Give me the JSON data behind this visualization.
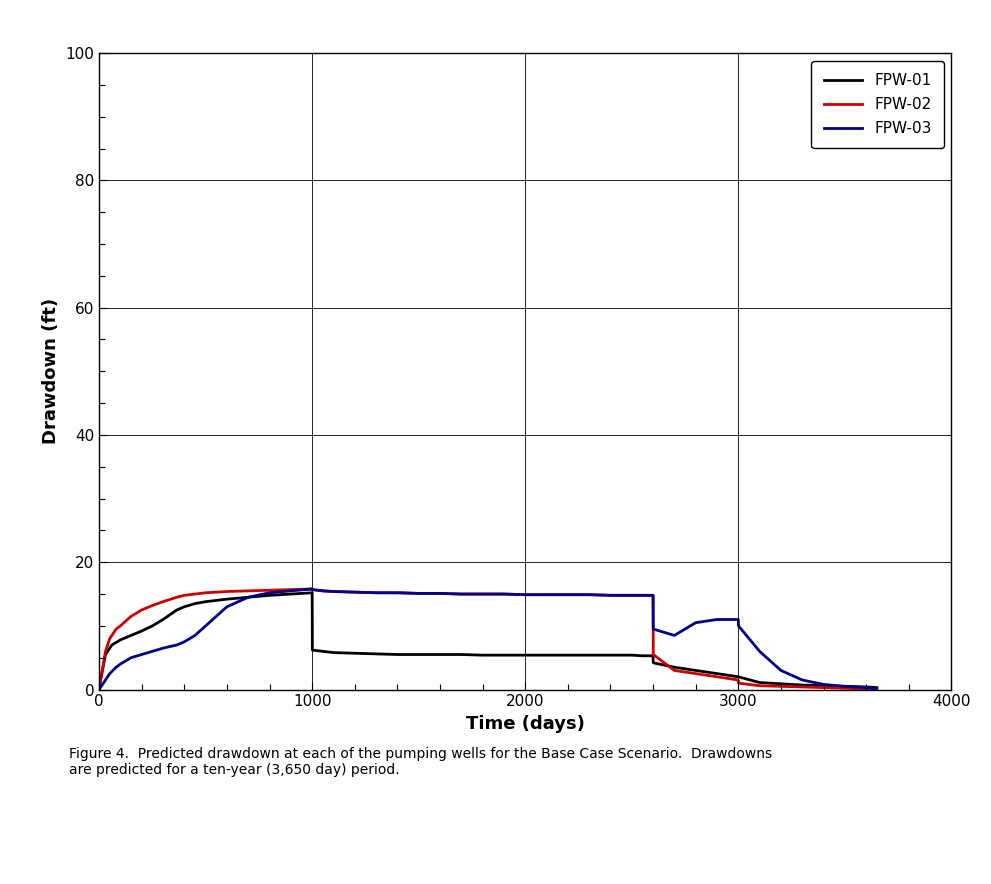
{
  "title": "",
  "xlabel": "Time (days)",
  "ylabel": "Drawdown (ft)",
  "xlim": [
    0,
    4000
  ],
  "ylim": [
    0,
    100
  ],
  "xticks": [
    0,
    1000,
    2000,
    3000,
    4000
  ],
  "yticks": [
    0,
    20,
    40,
    60,
    80,
    100
  ],
  "legend_labels": [
    "FPW-01",
    "FPW-02",
    "FPW-03"
  ],
  "legend_colors": [
    "#000000",
    "#cc0000",
    "#00008b"
  ],
  "caption": "Figure 4.  Predicted drawdown at each of the pumping wells for the Base Case Scenario.  Drawdowns\nare predicted for a ten-year (3,650 day) period.",
  "fpw01": {
    "color": "#000000",
    "x": [
      0,
      1,
      30,
      60,
      100,
      150,
      200,
      250,
      300,
      365,
      400,
      450,
      500,
      600,
      700,
      800,
      900,
      1000,
      1001,
      1050,
      1100,
      1200,
      1300,
      1400,
      1500,
      1600,
      1700,
      1800,
      1900,
      2000,
      2100,
      2200,
      2300,
      2400,
      2500,
      2550,
      2600,
      2601,
      2700,
      2800,
      2900,
      3000,
      3100,
      3200,
      3300,
      3400,
      3500,
      3600,
      3650
    ],
    "y": [
      0,
      0.5,
      5.5,
      7.0,
      7.8,
      8.5,
      9.2,
      10.0,
      11.0,
      12.5,
      13.0,
      13.5,
      13.8,
      14.2,
      14.5,
      14.8,
      15.0,
      15.2,
      6.2,
      6.0,
      5.8,
      5.7,
      5.6,
      5.5,
      5.5,
      5.5,
      5.5,
      5.4,
      5.4,
      5.4,
      5.4,
      5.4,
      5.4,
      5.4,
      5.4,
      5.3,
      5.3,
      4.2,
      3.5,
      3.0,
      2.5,
      2.0,
      1.1,
      0.9,
      0.7,
      0.6,
      0.5,
      0.4,
      0.3
    ]
  },
  "fpw02": {
    "color": "#cc0000",
    "x": [
      0,
      1,
      10,
      30,
      50,
      80,
      100,
      150,
      200,
      250,
      300,
      365,
      400,
      450,
      500,
      600,
      700,
      800,
      900,
      1000,
      1001,
      1050,
      1100,
      1200,
      1300,
      1400,
      1500,
      1600,
      1700,
      1800,
      1900,
      2000,
      2100,
      2200,
      2300,
      2400,
      2500,
      2550,
      2600,
      2601,
      2700,
      2800,
      2900,
      3000,
      3001,
      3100,
      3200,
      3300,
      3400,
      3500,
      3600,
      3650
    ],
    "y": [
      0,
      0.3,
      2.0,
      6.0,
      8.0,
      9.5,
      10.0,
      11.5,
      12.5,
      13.2,
      13.8,
      14.5,
      14.8,
      15.0,
      15.2,
      15.4,
      15.5,
      15.6,
      15.7,
      15.8,
      15.7,
      15.5,
      15.4,
      15.3,
      15.2,
      15.2,
      15.1,
      15.1,
      15.0,
      15.0,
      15.0,
      14.9,
      14.9,
      14.9,
      14.9,
      14.8,
      14.8,
      14.8,
      14.8,
      5.5,
      3.0,
      2.5,
      2.0,
      1.5,
      1.0,
      0.6,
      0.5,
      0.4,
      0.3,
      0.2,
      0.1,
      0.05
    ]
  },
  "fpw03": {
    "color": "#00008b",
    "x": [
      0,
      1,
      10,
      30,
      50,
      80,
      100,
      150,
      200,
      250,
      300,
      365,
      400,
      450,
      500,
      600,
      700,
      800,
      900,
      1000,
      1001,
      1050,
      1100,
      1200,
      1300,
      1400,
      1500,
      1600,
      1700,
      1800,
      1900,
      2000,
      2100,
      2200,
      2300,
      2400,
      2500,
      2550,
      2560,
      2600,
      2601,
      2700,
      2800,
      2900,
      3000,
      3001,
      3100,
      3200,
      3300,
      3400,
      3500,
      3600,
      3650
    ],
    "y": [
      0,
      0.1,
      0.5,
      1.5,
      2.5,
      3.5,
      4.0,
      5.0,
      5.5,
      6.0,
      6.5,
      7.0,
      7.5,
      8.5,
      10.0,
      13.0,
      14.5,
      15.2,
      15.5,
      15.8,
      15.7,
      15.5,
      15.4,
      15.3,
      15.2,
      15.2,
      15.1,
      15.1,
      15.0,
      15.0,
      15.0,
      14.9,
      14.9,
      14.9,
      14.9,
      14.8,
      14.8,
      14.8,
      14.8,
      14.8,
      9.5,
      8.5,
      10.5,
      11.0,
      11.0,
      10.0,
      6.0,
      3.0,
      1.5,
      0.8,
      0.5,
      0.3,
      0.1
    ]
  }
}
